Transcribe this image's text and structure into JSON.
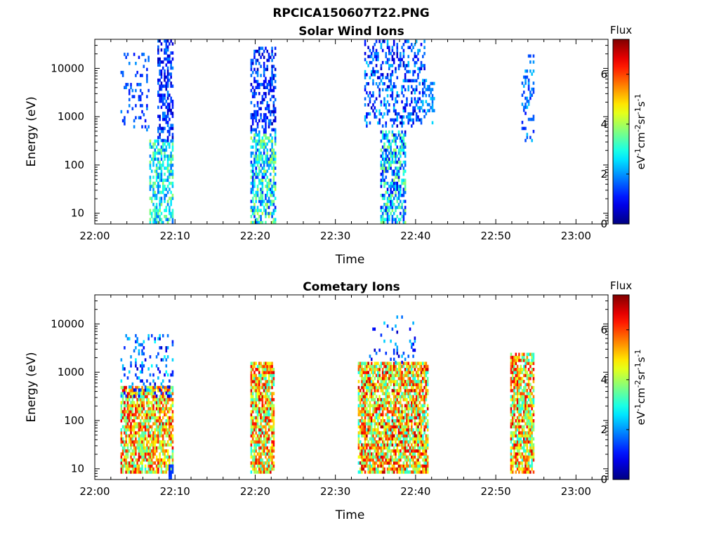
{
  "figure": {
    "title": "RPCICA150607T22.PNG"
  },
  "chart_data": [
    {
      "type": "heatmap",
      "id": "solar",
      "title": "Solar Wind Ions",
      "xlabel": "Time",
      "ylabel": "Energy (eV)",
      "x_start": "22:00",
      "xlim_minutes": [
        0,
        64
      ],
      "ylim": [
        6,
        40000
      ],
      "yscale": "log",
      "x_ticks": [
        {
          "m": 0,
          "label": "22:00"
        },
        {
          "m": 10,
          "label": "22:10"
        },
        {
          "m": 20,
          "label": "22:20"
        },
        {
          "m": 30,
          "label": "22:30"
        },
        {
          "m": 40,
          "label": "22:40"
        },
        {
          "m": 50,
          "label": "22:50"
        },
        {
          "m": 60,
          "label": "23:00"
        }
      ],
      "y_ticks": [
        {
          "v": 10,
          "label": "10"
        },
        {
          "v": 100,
          "label": "100"
        },
        {
          "v": 1000,
          "label": "1000"
        },
        {
          "v": 10000,
          "label": "10000"
        }
      ],
      "colorbar": {
        "title": "Flux",
        "range": [
          0,
          7.4
        ],
        "ticks": [
          "0",
          "2",
          "4",
          "6"
        ],
        "unit_label": "eV-1cm-2sr-1s-1",
        "colormap": "jet"
      },
      "grid": false,
      "bursts": [
        {
          "t0": 3.2,
          "t1": 6.8,
          "e_low": 500,
          "e_high": 20000,
          "flux_low": 1.0,
          "flux_high": 2.0,
          "density": 0.18
        },
        {
          "t0": 6.8,
          "t1": 9.8,
          "e_low": 6,
          "e_high": 300,
          "flux_low": 1.5,
          "flux_high": 4.0,
          "density": 0.55
        },
        {
          "t0": 7.8,
          "t1": 9.8,
          "e_low": 300,
          "e_high": 38000,
          "flux_low": 0.4,
          "flux_high": 2.0,
          "density": 0.45
        },
        {
          "t0": 19.4,
          "t1": 22.6,
          "e_low": 6,
          "e_high": 500,
          "flux_low": 1.0,
          "flux_high": 4.2,
          "density": 0.6
        },
        {
          "t0": 19.4,
          "t1": 22.6,
          "e_low": 500,
          "e_high": 25000,
          "flux_low": 0.3,
          "flux_high": 2.0,
          "density": 0.45
        },
        {
          "t0": 33.6,
          "t1": 41.2,
          "e_low": 600,
          "e_high": 36000,
          "flux_low": 0.4,
          "flux_high": 2.5,
          "density": 0.3
        },
        {
          "t0": 35.6,
          "t1": 38.8,
          "e_low": 6,
          "e_high": 500,
          "flux_low": 0.6,
          "flux_high": 4.0,
          "density": 0.6
        },
        {
          "t0": 40.4,
          "t1": 42.4,
          "e_low": 700,
          "e_high": 6000,
          "flux_low": 1.5,
          "flux_high": 2.5,
          "density": 0.25
        },
        {
          "t0": 53.2,
          "t1": 54.8,
          "e_low": 300,
          "e_high": 18000,
          "flux_low": 1.0,
          "flux_high": 2.4,
          "density": 0.3
        }
      ]
    },
    {
      "type": "heatmap",
      "id": "cometary",
      "title": "Cometary Ions",
      "xlabel": "Time",
      "ylabel": "Energy (eV)",
      "x_start": "22:00",
      "xlim_minutes": [
        0,
        64
      ],
      "ylim": [
        6,
        40000
      ],
      "yscale": "log",
      "x_ticks": [
        {
          "m": 0,
          "label": "22:00"
        },
        {
          "m": 10,
          "label": "22:10"
        },
        {
          "m": 20,
          "label": "22:20"
        },
        {
          "m": 30,
          "label": "22:30"
        },
        {
          "m": 40,
          "label": "22:40"
        },
        {
          "m": 50,
          "label": "22:50"
        },
        {
          "m": 60,
          "label": "23:00"
        }
      ],
      "y_ticks": [
        {
          "v": 10,
          "label": "10"
        },
        {
          "v": 100,
          "label": "100"
        },
        {
          "v": 1000,
          "label": "1000"
        },
        {
          "v": 10000,
          "label": "10000"
        }
      ],
      "colorbar": {
        "title": "Flux",
        "range": [
          0,
          7.4
        ],
        "ticks": [
          "0",
          "2",
          "4",
          "6"
        ],
        "unit_label": "eV-1cm-2sr-1s-1",
        "colormap": "jet"
      },
      "grid": false,
      "bursts": [
        {
          "t0": 3.2,
          "t1": 9.8,
          "e_low": 8,
          "e_high": 500,
          "flux_low": 3.0,
          "flux_high": 6.8,
          "density": 0.75
        },
        {
          "t0": 3.2,
          "t1": 9.8,
          "e_low": 300,
          "e_high": 6000,
          "flux_low": 0.5,
          "flux_high": 2.8,
          "density": 0.2
        },
        {
          "t0": 19.4,
          "t1": 22.4,
          "e_low": 8,
          "e_high": 1500,
          "flux_low": 2.8,
          "flux_high": 6.8,
          "density": 0.8
        },
        {
          "t0": 32.8,
          "t1": 41.6,
          "e_low": 8,
          "e_high": 1500,
          "flux_low": 2.8,
          "flux_high": 7.0,
          "density": 0.8
        },
        {
          "t0": 34.0,
          "t1": 40.0,
          "e_low": 1500,
          "e_high": 13000,
          "flux_low": 0.5,
          "flux_high": 2.5,
          "density": 0.08
        },
        {
          "t0": 51.8,
          "t1": 54.8,
          "e_low": 8,
          "e_high": 2500,
          "flux_low": 2.8,
          "flux_high": 6.8,
          "density": 0.8
        },
        {
          "t0": 9.2,
          "t1": 9.8,
          "e_low": 6,
          "e_high": 12,
          "flux_low": 1.0,
          "flux_high": 1.4,
          "density": 0.9
        }
      ]
    }
  ]
}
